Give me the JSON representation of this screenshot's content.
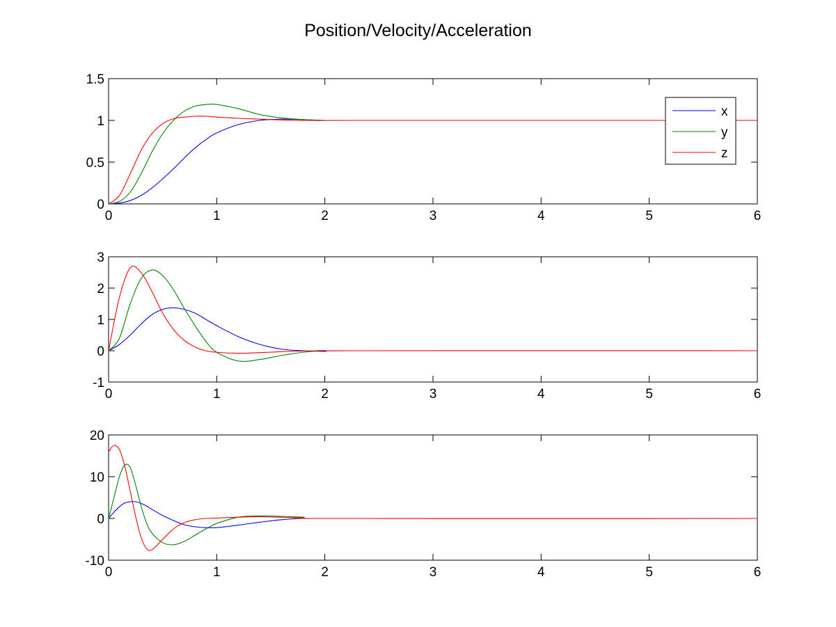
{
  "title": "Position/Velocity/Acceleration",
  "colors": {
    "x": "#0000ff",
    "y": "#008000",
    "z": "#ff0000",
    "axes": "#000000",
    "background": "#ffffff"
  },
  "chart_data": [
    {
      "type": "line",
      "title": "Position/Velocity/Acceleration",
      "xlabel": "",
      "ylabel": "",
      "xlim": [
        0,
        6
      ],
      "ylim": [
        0,
        1.5
      ],
      "xticks": [
        "0",
        "1",
        "2",
        "3",
        "4",
        "5",
        "6"
      ],
      "yticks": [
        "0",
        "0.5",
        "1",
        "1.5"
      ],
      "grid": false,
      "legend": {
        "placement": "top-right",
        "entries": [
          "x",
          "y",
          "z"
        ]
      },
      "x": [
        0,
        0.1,
        0.2,
        0.3,
        0.4,
        0.5,
        0.6,
        0.7,
        0.8,
        0.9,
        1.0,
        1.2,
        1.4,
        1.6,
        1.8,
        2.0,
        2.3,
        6.0
      ],
      "series": [
        {
          "name": "x",
          "color": "#0000ff",
          "values": [
            0,
            0.01,
            0.04,
            0.1,
            0.19,
            0.3,
            0.42,
            0.55,
            0.67,
            0.77,
            0.85,
            0.95,
            1.0,
            1.015,
            1.01,
            1.0,
            1.0,
            1.0
          ]
        },
        {
          "name": "y",
          "color": "#008000",
          "values": [
            0,
            0.03,
            0.14,
            0.36,
            0.62,
            0.84,
            1.0,
            1.11,
            1.17,
            1.19,
            1.19,
            1.14,
            1.07,
            1.03,
            1.01,
            1.0,
            1.0,
            1.0
          ]
        },
        {
          "name": "z",
          "color": "#ff0000",
          "values": [
            0,
            0.1,
            0.36,
            0.64,
            0.84,
            0.96,
            1.02,
            1.04,
            1.05,
            1.05,
            1.04,
            1.025,
            1.015,
            1.005,
            1.0,
            1.0,
            1.0,
            1.0
          ]
        }
      ]
    },
    {
      "type": "line",
      "xlabel": "",
      "ylabel": "",
      "xlim": [
        0,
        6
      ],
      "ylim": [
        -1,
        3
      ],
      "xticks": [
        "0",
        "1",
        "2",
        "3",
        "4",
        "5",
        "6"
      ],
      "yticks": [
        "-1",
        "0",
        "1",
        "2",
        "3"
      ],
      "grid": false,
      "x": [
        0,
        0.1,
        0.2,
        0.3,
        0.4,
        0.5,
        0.6,
        0.7,
        0.8,
        0.9,
        1.0,
        1.2,
        1.4,
        1.6,
        1.8,
        2.0,
        2.3,
        6.0
      ],
      "series": [
        {
          "name": "x",
          "color": "#0000ff",
          "values": [
            0,
            0.2,
            0.5,
            0.85,
            1.15,
            1.32,
            1.37,
            1.32,
            1.2,
            1.0,
            0.8,
            0.45,
            0.2,
            0.05,
            0.0,
            -0.02,
            0.0,
            0.0
          ]
        },
        {
          "name": "y",
          "color": "#008000",
          "values": [
            0,
            0.4,
            1.5,
            2.3,
            2.58,
            2.4,
            1.95,
            1.35,
            0.8,
            0.3,
            -0.05,
            -0.33,
            -0.28,
            -0.15,
            -0.05,
            0.0,
            0.0,
            0.0
          ]
        },
        {
          "name": "z",
          "color": "#ff0000",
          "values": [
            0,
            1.7,
            2.65,
            2.5,
            1.9,
            1.2,
            0.68,
            0.33,
            0.12,
            0.0,
            -0.05,
            -0.08,
            -0.06,
            -0.03,
            -0.01,
            0.0,
            0.0,
            0.0
          ]
        }
      ]
    },
    {
      "type": "line",
      "xlabel": "",
      "ylabel": "",
      "xlim": [
        0,
        6
      ],
      "ylim": [
        -10,
        20
      ],
      "xticks": [
        "0",
        "1",
        "2",
        "3",
        "4",
        "5",
        "6"
      ],
      "yticks": [
        "-10",
        "0",
        "10",
        "20"
      ],
      "grid": false,
      "x": [
        0,
        0.05,
        0.1,
        0.15,
        0.2,
        0.25,
        0.3,
        0.35,
        0.4,
        0.5,
        0.6,
        0.7,
        0.8,
        0.9,
        1.0,
        1.2,
        1.4,
        1.6,
        1.8,
        2.1,
        6.0
      ],
      "series": [
        {
          "name": "x",
          "color": "#0000ff",
          "values": [
            0,
            1.5,
            2.8,
            3.7,
            4.0,
            4.0,
            3.6,
            3.0,
            2.2,
            0.7,
            -0.5,
            -1.5,
            -2.0,
            -2.2,
            -2.2,
            -1.6,
            -0.9,
            -0.3,
            0.0,
            0.0,
            0.0
          ]
        },
        {
          "name": "y",
          "color": "#008000",
          "values": [
            0,
            5.0,
            10.0,
            12.8,
            12.2,
            8.0,
            3.0,
            -1.0,
            -3.5,
            -5.8,
            -6.3,
            -5.5,
            -4.0,
            -2.5,
            -1.2,
            0.3,
            0.6,
            0.5,
            0.3,
            0.0,
            0.0
          ]
        },
        {
          "name": "z",
          "color": "#ff0000",
          "values": [
            16.0,
            17.5,
            16.5,
            12.5,
            6.5,
            0.5,
            -4.5,
            -7.2,
            -7.5,
            -5.0,
            -2.5,
            -1.0,
            -0.3,
            0.0,
            0.1,
            0.3,
            0.4,
            0.3,
            0.1,
            0.0,
            0.0
          ]
        }
      ]
    }
  ]
}
